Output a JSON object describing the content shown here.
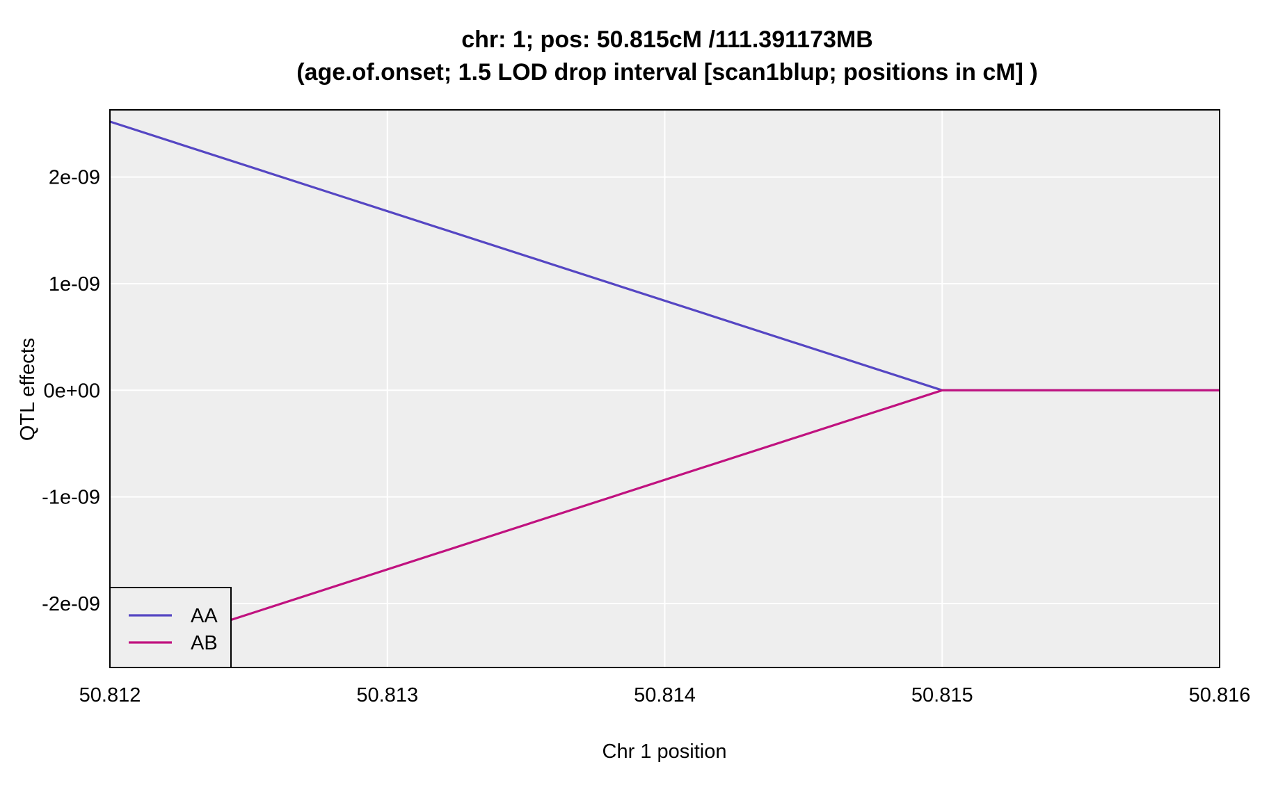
{
  "chart_data": {
    "type": "line",
    "title_line1": "chr: 1; pos: 50.815cM /111.391173MB",
    "title_line2": "(age.of.onset; 1.5 LOD drop interval [scan1blup; positions in cM] )",
    "xlabel": "Chr 1 position",
    "ylabel": "QTL effects",
    "xlim": [
      50.812,
      50.816
    ],
    "ylim": [
      -2.6e-09,
      2.63e-09
    ],
    "x_ticks": [
      50.812,
      50.813,
      50.814,
      50.815,
      50.816
    ],
    "x_tick_labels": [
      "50.812",
      "50.813",
      "50.814",
      "50.815",
      "50.816"
    ],
    "y_ticks": [
      2e-09,
      1e-09,
      0,
      -1e-09,
      -2e-09
    ],
    "y_tick_labels": [
      "2e-09",
      "1e-09",
      "0e+00",
      "-1e-09",
      "-2e-09"
    ],
    "grid": true,
    "legend_position": "bottom-left",
    "background_color": "#eeeeee",
    "grid_color": "#ffffff",
    "series": [
      {
        "name": "AA",
        "color": "#5546c3",
        "x": [
          50.812,
          50.815,
          50.816
        ],
        "y": [
          2.52e-09,
          0,
          0
        ]
      },
      {
        "name": "AB",
        "color": "#c0127f",
        "x": [
          50.812,
          50.815,
          50.816
        ],
        "y": [
          -2.52e-09,
          0,
          0
        ]
      }
    ]
  }
}
